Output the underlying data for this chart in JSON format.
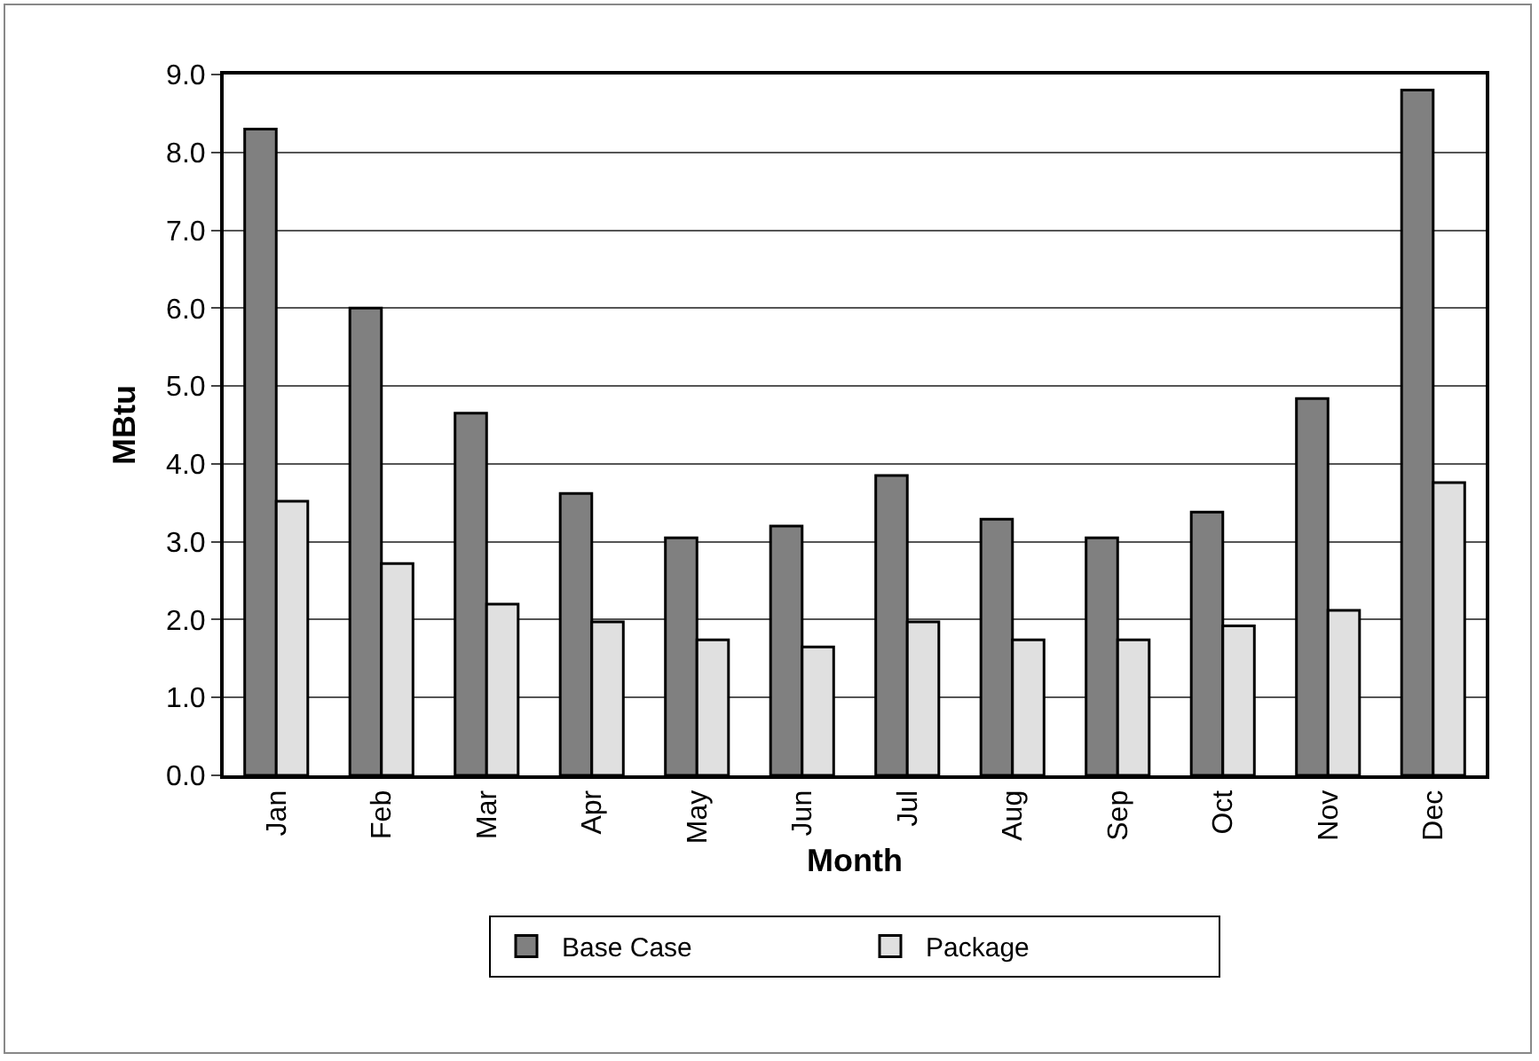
{
  "chart_data": {
    "type": "bar",
    "xlabel": "Month",
    "ylabel": "MBtu",
    "categories": [
      "Jan",
      "Feb",
      "Mar",
      "Apr",
      "May",
      "Jun",
      "Jul",
      "Aug",
      "Sep",
      "Oct",
      "Nov",
      "Dec"
    ],
    "series": [
      {
        "name": "Base Case",
        "color": "#808080",
        "values": [
          8.3,
          6.0,
          4.65,
          3.62,
          3.05,
          3.2,
          3.85,
          3.29,
          3.05,
          3.38,
          4.84,
          8.8
        ]
      },
      {
        "name": "Package",
        "color": "#e0e0e0",
        "values": [
          3.52,
          2.72,
          2.2,
          1.97,
          1.74,
          1.65,
          1.97,
          1.74,
          1.74,
          1.92,
          2.12,
          3.76
        ]
      }
    ],
    "ylim": [
      0,
      9
    ],
    "yticks": [
      {
        "value": 0,
        "label": "0.0"
      },
      {
        "value": 1,
        "label": "1.0"
      },
      {
        "value": 2,
        "label": "2.0"
      },
      {
        "value": 3,
        "label": "3.0"
      },
      {
        "value": 4,
        "label": "4.0"
      },
      {
        "value": 5,
        "label": "5.0"
      },
      {
        "value": 6,
        "label": "6.0"
      },
      {
        "value": 7,
        "label": "7.0"
      },
      {
        "value": 8,
        "label": "8.0"
      },
      {
        "value": 9,
        "label": "9.0"
      }
    ],
    "grid": "y",
    "legend": "bottom"
  }
}
